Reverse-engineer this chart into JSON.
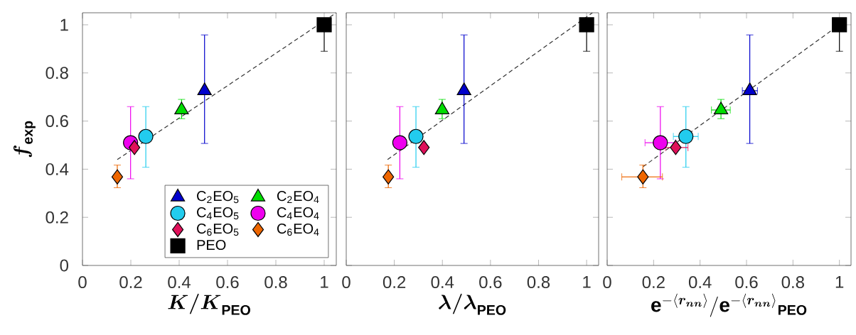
{
  "chart_data": [
    {
      "type": "scatter",
      "xlabel": "\\boldsymbol{K/K}_{\\mathbf{PEO}}",
      "ylabel": "\\boldsymbol{f}_{\\mathbf{exp}}",
      "xlim": [
        0,
        1.05
      ],
      "ylim": [
        0,
        1.05
      ],
      "xticks": [
        0,
        0.2,
        0.4,
        0.6,
        0.8,
        1
      ],
      "yticks": [
        0,
        0.2,
        0.4,
        0.6,
        0.8,
        1
      ],
      "legend": "bottom right",
      "series": [
        {
          "name": "C$_{2}$EO$_{5}$",
          "color": "#0000cc",
          "marker": "triangle",
          "x": [
            0.505
          ],
          "values": [
            0.726
          ],
          "errors": [
            [
              0.507,
              0.958
            ]
          ]
        },
        {
          "name": "C$_{2}$EO$_{4}$",
          "color": "#00dd00",
          "marker": "triangle",
          "x": [
            0.41
          ],
          "values": [
            0.646
          ],
          "errors": [
            [
              0.61,
              0.69
            ]
          ]
        },
        {
          "name": "C$_{4}$EO$_{5}$",
          "color": "#22ccee",
          "marker": "circle",
          "x": [
            0.262
          ],
          "values": [
            0.536
          ],
          "errors": [
            [
              0.408,
              0.66
            ]
          ]
        },
        {
          "name": "C$_{4}$EO$_{4}$",
          "color": "#ee00ee",
          "marker": "circle",
          "x": [
            0.199
          ],
          "values": [
            0.51
          ],
          "errors": [
            [
              0.36,
              0.66
            ]
          ]
        },
        {
          "name": "C$_{6}$EO$_{5}$",
          "color": "#e0105a",
          "marker": "diamond",
          "x": [
            0.215
          ],
          "values": [
            0.49
          ]
        },
        {
          "name": "C$_{6}$EO$_{4}$",
          "color": "#ee6600",
          "marker": "diamond",
          "x": [
            0.144
          ],
          "values": [
            0.368
          ],
          "errors": [
            [
              0.323,
              0.417
            ]
          ]
        },
        {
          "name": "PEO",
          "color": "#000000",
          "marker": "square",
          "x": [
            1.0
          ],
          "values": [
            1.0
          ],
          "errors": [
            [
              0.89,
              1.0
            ]
          ]
        },
        {
          "type": "line",
          "color": "#333333",
          "line_style": "dashed",
          "marker": "none",
          "x": [
            0.144,
            1.05
          ],
          "values": [
            0.44,
            1.05
          ]
        }
      ]
    },
    {
      "type": "scatter",
      "xlabel": "\\boldsymbol{\\lambda/\\lambda}_{\\mathbf{PEO}}",
      "xlim": [
        0,
        1.05
      ],
      "ylim": [
        0,
        1.05
      ],
      "xticks": [
        0,
        0.2,
        0.4,
        0.6,
        0.8,
        1
      ],
      "yticks": [
        0,
        0.2,
        0.4,
        0.6,
        0.8,
        1
      ],
      "tick_labels": "x",
      "series": [
        {
          "color": "#0000cc",
          "marker": "triangle",
          "x": [
            0.49
          ],
          "values": [
            0.726
          ],
          "errors": [
            [
              0.507,
              0.958
            ]
          ]
        },
        {
          "color": "#00dd00",
          "marker": "triangle",
          "x": [
            0.399
          ],
          "values": [
            0.646
          ],
          "errors": [
            [
              0.61,
              0.69
            ]
          ]
        },
        {
          "color": "#22ccee",
          "marker": "circle",
          "x": [
            0.29
          ],
          "values": [
            0.536
          ],
          "errors": [
            [
              0.408,
              0.66
            ]
          ]
        },
        {
          "color": "#ee00ee",
          "marker": "circle",
          "x": [
            0.223
          ],
          "values": [
            0.51
          ],
          "errors": [
            [
              0.36,
              0.66
            ]
          ]
        },
        {
          "color": "#e0105a",
          "marker": "diamond",
          "x": [
            0.323
          ],
          "values": [
            0.49
          ]
        },
        {
          "color": "#ee6600",
          "marker": "diamond",
          "x": [
            0.175
          ],
          "values": [
            0.368
          ],
          "errors": [
            [
              0.323,
              0.417
            ]
          ]
        },
        {
          "color": "#000000",
          "marker": "square",
          "x": [
            1.0
          ],
          "values": [
            1.0
          ],
          "errors": [
            [
              0.89,
              1.0
            ]
          ]
        },
        {
          "type": "line",
          "color": "#333333",
          "line_style": "dashed",
          "marker": "none",
          "x": [
            0.172,
            1.024
          ],
          "values": [
            0.44,
            1.05
          ]
        }
      ]
    },
    {
      "type": "scatter",
      "xlabel": "\\mathbf{e}^{-\\langle \\boldsymbol{r_{nn}}\\rangle}/\\mathbf{e}^{-\\langle \\boldsymbol{r_{nn}}\\rangle}{}_{\\mathbf{PEO}}",
      "xlim": [
        0,
        1.05
      ],
      "ylim": [
        0,
        1.05
      ],
      "xticks": [
        0,
        0.2,
        0.4,
        0.6,
        0.8,
        1
      ],
      "yticks": [
        0,
        0.2,
        0.4,
        0.6,
        0.8,
        1
      ],
      "tick_labels": "x",
      "series": [
        {
          "color": "#0000cc",
          "marker": "triangle",
          "x": [
            0.614
          ],
          "values": [
            0.726
          ],
          "errors": [
            [
              0.507,
              0.958
            ]
          ],
          "xerrors": [
            [
              0.582,
              0.647
            ]
          ]
        },
        {
          "color": "#00dd00",
          "marker": "triangle",
          "x": [
            0.49
          ],
          "values": [
            0.646
          ],
          "errors": [
            [
              0.61,
              0.69
            ]
          ],
          "xerrors": [
            [
              0.449,
              0.53
            ]
          ]
        },
        {
          "color": "#22ccee",
          "marker": "circle",
          "x": [
            0.339
          ],
          "values": [
            0.536
          ],
          "errors": [
            [
              0.408,
              0.66
            ]
          ],
          "xerrors": [
            [
              0.285,
              0.392
            ]
          ]
        },
        {
          "color": "#ee00ee",
          "marker": "circle",
          "x": [
            0.229
          ],
          "values": [
            0.51
          ],
          "errors": [
            [
              0.36,
              0.66
            ]
          ],
          "xerrors": [
            [
              0.163,
              0.294
            ]
          ]
        },
        {
          "color": "#e0105a",
          "marker": "diamond",
          "x": [
            0.295
          ],
          "values": [
            0.49
          ],
          "xerrors": [
            [
              0.251,
              0.348
            ]
          ]
        },
        {
          "color": "#ee6600",
          "marker": "diamond",
          "x": [
            0.154
          ],
          "values": [
            0.368
          ],
          "errors": [
            [
              0.323,
              0.417
            ]
          ],
          "xerrors": [
            [
              0.063,
              0.238
            ]
          ]
        },
        {
          "color": "#000000",
          "marker": "square",
          "x": [
            1.0
          ],
          "values": [
            1.0
          ],
          "errors": [
            [
              0.89,
              1.0
            ]
          ]
        },
        {
          "type": "line",
          "color": "#333333",
          "line_style": "dashed",
          "marker": "none",
          "x": [
            0.154,
            1.0
          ],
          "values": [
            0.41,
            1.0
          ]
        }
      ]
    }
  ]
}
